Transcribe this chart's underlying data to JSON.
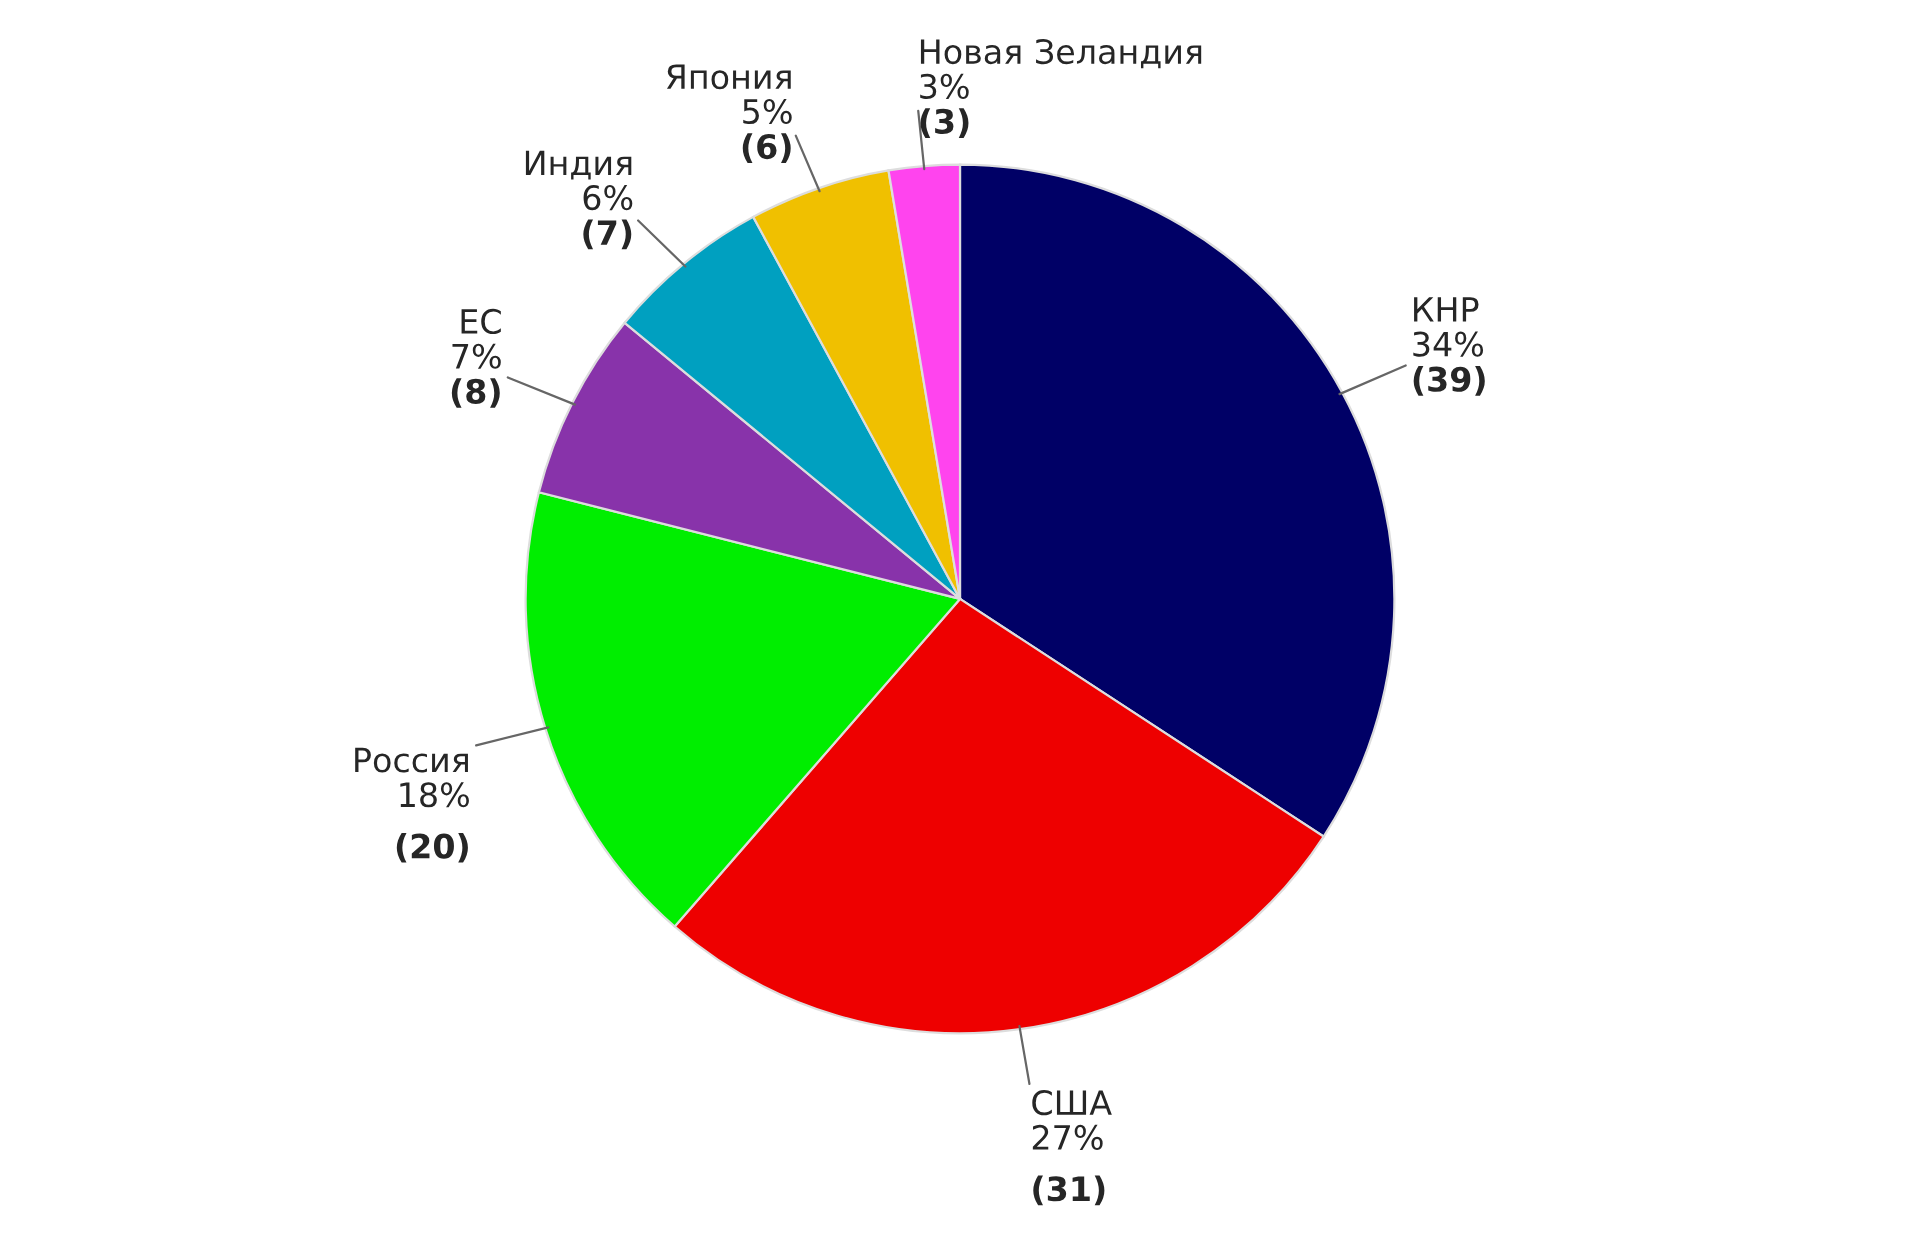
{
  "chart_data": {
    "type": "pie",
    "categories": [
      "КНР",
      "США",
      "Россия",
      "ЕС",
      "Индия",
      "Япония",
      "Новая Зеландия"
    ],
    "values": [
      39,
      31,
      20,
      8,
      7,
      6,
      3
    ],
    "value_labels": [
      "34%\n(39)",
      "27%\n(31)",
      "18%\n(20)",
      "7%\n(8)",
      "6%\n(7)",
      "5%\n(6)",
      "3%\n(3)"
    ],
    "colors": [
      "#000066",
      "#ee0000",
      "#00ee00",
      "#8833aa",
      "#00a0c0",
      "#f0c000",
      "#ff44ee"
    ],
    "legend": false
  }
}
